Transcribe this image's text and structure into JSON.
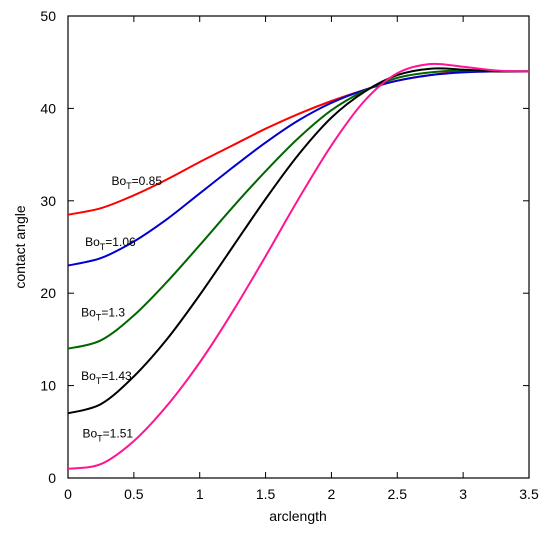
{
  "chart_data": {
    "type": "line",
    "xlabel": "arclength",
    "ylabel": "contact angle",
    "xlim": [
      0,
      3.5
    ],
    "ylim": [
      0,
      50
    ],
    "x_ticks": [
      0,
      0.5,
      1,
      1.5,
      2,
      2.5,
      3,
      3.5
    ],
    "x_tick_labels": [
      "0",
      "0.5",
      "1",
      "1.5",
      "2",
      "2.5",
      "3",
      "3.5"
    ],
    "y_ticks": [
      0,
      10,
      20,
      30,
      40,
      50
    ],
    "y_tick_labels": [
      "0",
      "10",
      "20",
      "30",
      "40",
      "50"
    ],
    "grid": false,
    "legend": "none",
    "x": [
      0,
      0.25,
      0.5,
      0.75,
      1,
      1.25,
      1.5,
      1.75,
      2,
      2.25,
      2.5,
      2.75,
      3,
      3.25,
      3.5
    ],
    "series": [
      {
        "color": "#ff0000",
        "values": [
          28.5,
          29.2,
          30.6,
          32.3,
          34.2,
          36.0,
          37.8,
          39.4,
          40.8,
          42.0,
          43.0,
          43.6,
          44.0,
          44.0,
          44.0
        ]
      },
      {
        "color": "#0000cc",
        "values": [
          23.0,
          23.8,
          25.6,
          28.0,
          30.8,
          33.6,
          36.3,
          38.7,
          40.6,
          42.0,
          43.0,
          43.6,
          43.9,
          44.0,
          44.0
        ]
      },
      {
        "color": "#006600",
        "values": [
          14.0,
          14.9,
          17.6,
          21.2,
          25.2,
          29.3,
          33.2,
          36.8,
          39.8,
          41.9,
          43.3,
          43.9,
          44.1,
          44.0,
          44.0
        ]
      },
      {
        "color": "#000000",
        "values": [
          7.0,
          8.0,
          11.0,
          15.0,
          19.8,
          25.0,
          30.2,
          35.0,
          39.0,
          41.8,
          43.6,
          44.3,
          44.2,
          44.0,
          44.0
        ]
      },
      {
        "color": "#ff1493",
        "values": [
          1.0,
          1.5,
          4.0,
          7.8,
          12.5,
          18.0,
          24.0,
          30.2,
          36.0,
          40.8,
          43.8,
          44.8,
          44.5,
          44.1,
          44.0
        ]
      }
    ],
    "annotations": [
      {
        "base": "Bo",
        "sub": "T",
        "suffix": "=0.85",
        "x": 0.33,
        "y": 31.7
      },
      {
        "base": "Bo",
        "sub": "T",
        "suffix": "=1.06",
        "x": 0.13,
        "y": 25.1
      },
      {
        "base": "Bo",
        "sub": "T",
        "suffix": "=1.3",
        "x": 0.1,
        "y": 17.5
      },
      {
        "base": "Bo",
        "sub": "T",
        "suffix": "=1.43",
        "x": 0.1,
        "y": 10.6
      },
      {
        "base": "Bo",
        "sub": "T",
        "suffix": "=1.51",
        "x": 0.11,
        "y": 4.4
      }
    ]
  }
}
